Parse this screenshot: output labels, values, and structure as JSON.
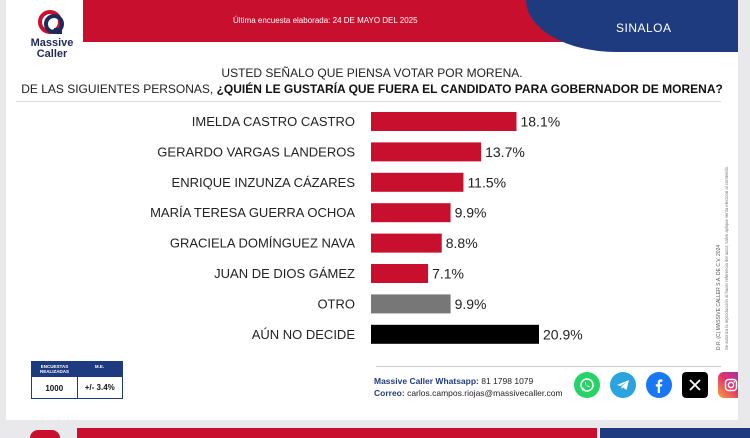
{
  "header": {
    "date_line": "Última encuesta elaborada: 24 DE MAYO DEL 2025",
    "region": "SINALOA",
    "brand_line1": "Massive",
    "brand_line2": "Caller"
  },
  "question": {
    "line1": "USTED SEÑALO QUE PIENSA VOTAR POR MORENA.",
    "line2_prefix": "DE LAS SIGUIENTES PERSONAS, ",
    "line2_bold": "¿QUIÉN LE GUSTARÍA QUE FUERA EL CANDIDATO PARA GOBERNADOR DE MORENA?"
  },
  "chart_data": {
    "type": "bar",
    "orientation": "horizontal",
    "categories": [
      "IMELDA CASTRO CASTRO",
      "GERARDO VARGAS LANDEROS",
      "ENRIQUE INZUNZA CÁZARES",
      "MARÍA TERESA GUERRA OCHOA",
      "GRACIELA DOMÍNGUEZ NAVA",
      "JUAN DE DIOS GÁMEZ",
      "OTRO",
      "AÚN NO DECIDE"
    ],
    "values": [
      18.1,
      13.7,
      11.5,
      9.9,
      8.8,
      7.1,
      9.9,
      20.9
    ],
    "value_labels": [
      "18.1%",
      "13.7%",
      "11.5%",
      "9.9%",
      "8.8%",
      "7.1%",
      "9.9%",
      "20.9%"
    ],
    "colors": [
      "#c8102e",
      "#c8102e",
      "#c8102e",
      "#c8102e",
      "#c8102e",
      "#c8102e",
      "#777777",
      "#000000"
    ],
    "xlim": [
      0,
      20.9
    ],
    "grid": false,
    "legend": false
  },
  "stats": {
    "col1_header": "ENCUESTAS REALIZADAS",
    "col2_header": "M.E.",
    "col1_value": "1000",
    "col2_value": "+/- 3.4%"
  },
  "contact": {
    "whatsapp_label": "Massive Caller Whatsapp:",
    "whatsapp_value": "81 1798 1079",
    "email_label": "Correo:",
    "email_value": "carlos.campos.riojas@massivecaller.com"
  },
  "copyright": {
    "line1": "D.R. (C) MASSIVE CALLER S.A. DE C.V. 2024",
    "line2": "Se autoriza la reproducción al hacer referencia del autor, salvo aplique venta electoral al contenido."
  },
  "socials": [
    "whatsapp-icon",
    "telegram-icon",
    "facebook-icon",
    "x-icon",
    "instagram-icon"
  ],
  "colors": {
    "brand_red": "#c8102e",
    "brand_blue": "#1f3b80",
    "other_gray": "#777777",
    "undecided_black": "#000000"
  }
}
